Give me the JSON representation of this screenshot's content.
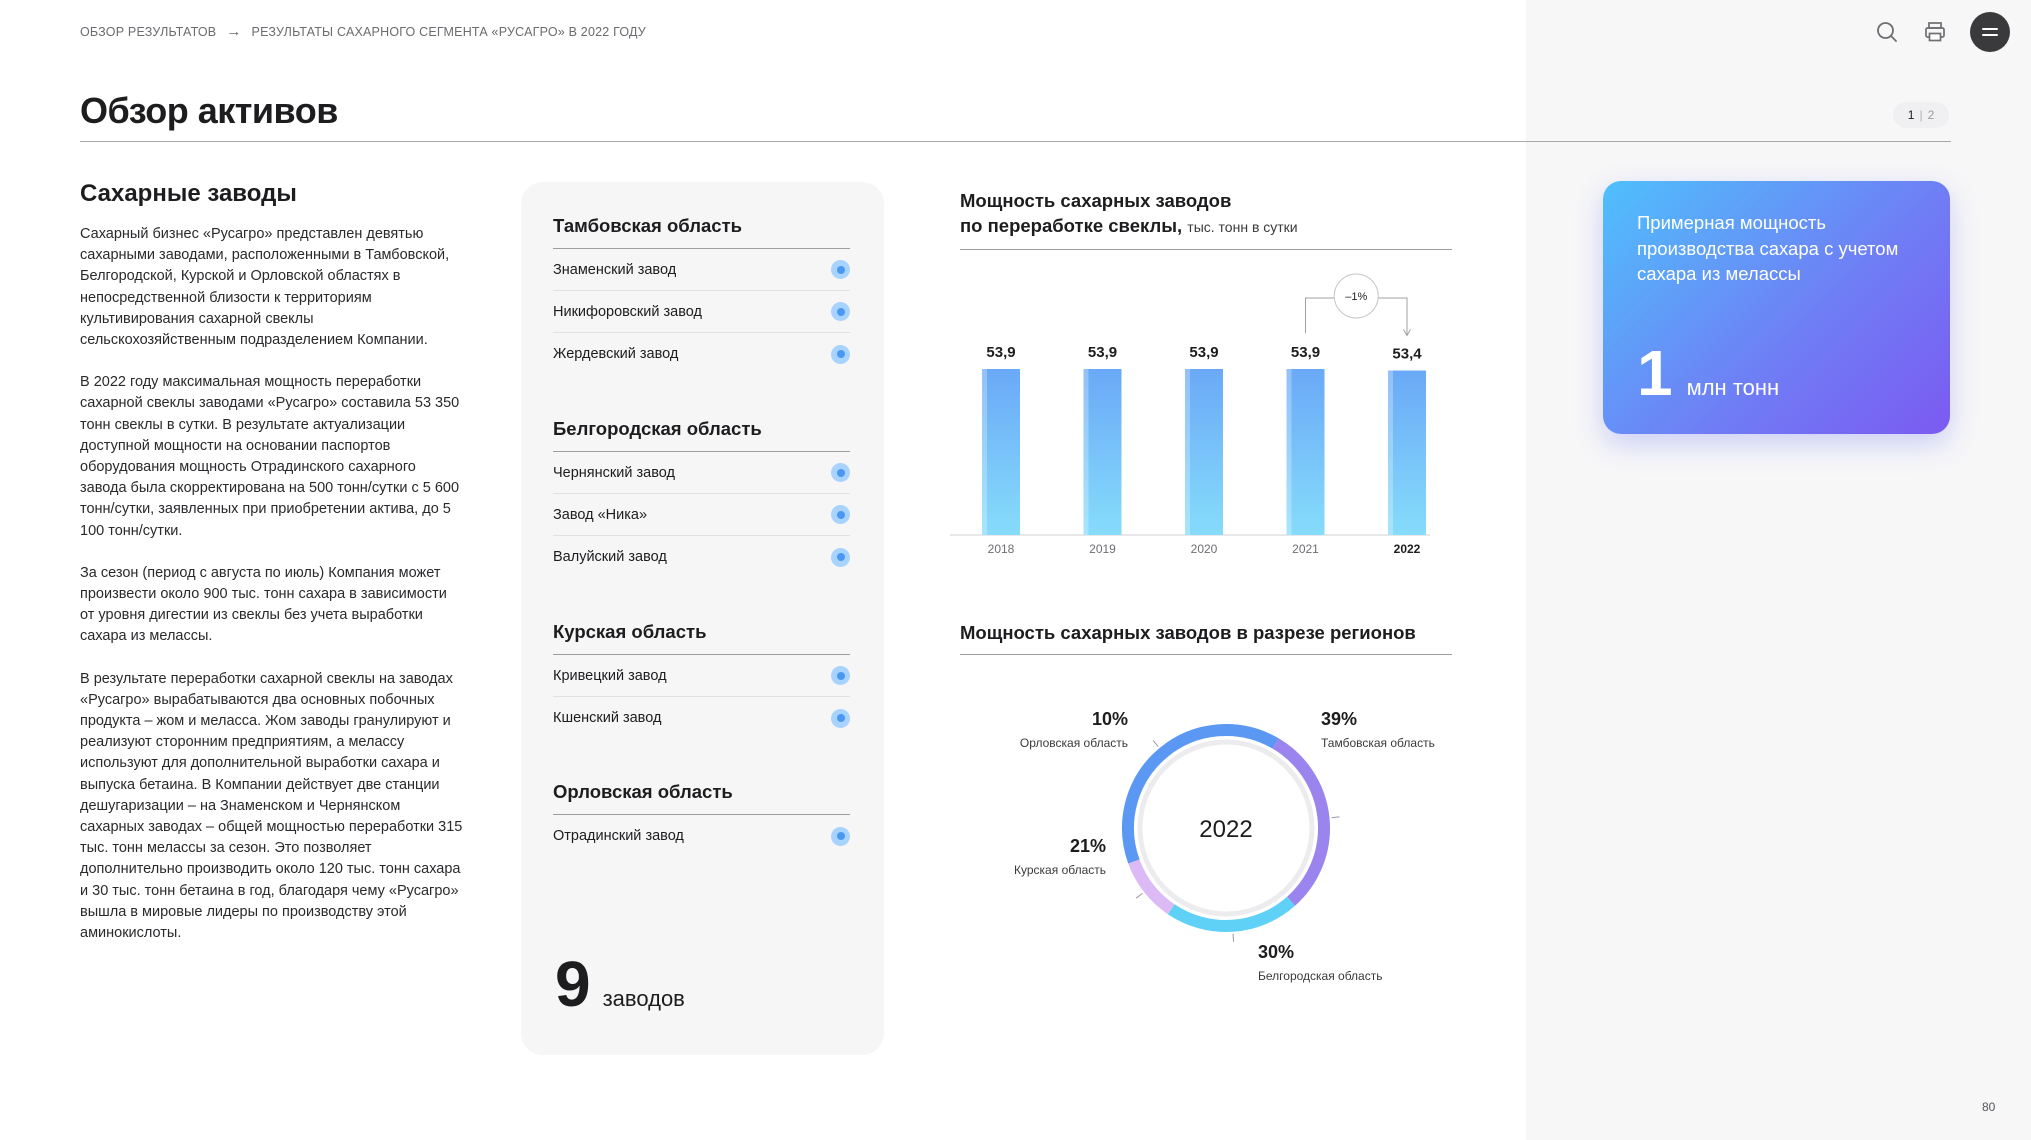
{
  "breadcrumb": {
    "parent": "ОБЗОР РЕЗУЛЬТАТОВ",
    "current": "РЕЗУЛЬТАТЫ САХАРНОГО СЕГМЕНТА «РУСАГРО» В 2022 ГОДУ"
  },
  "header": {
    "icons": [
      "search-icon",
      "print-icon",
      "menu-icon"
    ],
    "title": "Обзор активов",
    "pager": {
      "current": "1",
      "separator": "|",
      "next": "2"
    }
  },
  "left": {
    "title": "Сахарные заводы",
    "paragraphs": [
      "Сахарный бизнес «Русагро» представлен девятью сахарными заводами, расположенными в Тамбовской, Белгородской, Курской и Орловской областях в непосредственной близости к территориям культивирования сахарной свеклы сельскохозяйственным подразделением Компании.",
      "В 2022 году максимальная мощность переработки сахарной свеклы заводами «Русагро» составила 53 350 тонн свеклы в сутки. В результате актуализации доступной мощности на основании паспортов оборудования мощность Отрадинского сахарного завода была скорректирована на 500 тонн/сутки с 5 600 тонн/сутки, заявленных при приобретении актива, до 5 100 тонн/сутки.",
      "За сезон (период с августа по июль) Компания может произвести около 900 тыс. тонн сахара в зависимости от уровня дигестии из свеклы без учета выработки сахара из мелассы.",
      "В результате переработки сахарной свеклы на заводах «Русагро» вырабатываются два основных побочных продукта – жом и меласса. Жом заводы гранулируют и реализуют сторонним предприятиям, а мелассу используют для дополнительной выработки сахара и выпуска бетаина. В Компании действует две станции дешугаризации – на Знаменском и Чернянском сахарных заводах – общей мощностью переработки 315 тыс. тонн мелассы за сезон. Это позволяет дополнительно производить около 120 тыс. тонн сахара и 30 тыс. тонн бетаина в год, благодаря чему «Русагро» вышла в мировые лидеры по производству этой аминокислоты."
    ]
  },
  "plants": {
    "regions": [
      {
        "name": "Тамбовская область",
        "plants": [
          "Знаменский завод",
          "Никифоровский завод",
          "Жердевский завод"
        ]
      },
      {
        "name": "Белгородская область",
        "plants": [
          "Чернянский завод",
          "Завод «Ника»",
          "Валуйский завод"
        ]
      },
      {
        "name": "Курская область",
        "plants": [
          "Кривецкий завод",
          "Кшенский завод"
        ]
      },
      {
        "name": "Орловская область",
        "plants": [
          "Отрадинский завод"
        ]
      }
    ],
    "total_number": "9",
    "total_label": "заводов",
    "pin_icon": "map-pin-icon"
  },
  "chart_data": [
    {
      "type": "bar",
      "title": "Мощность сахарных заводов по переработке свеклы,",
      "unit": "тыс. тонн в сутки",
      "categories": [
        "2018",
        "2019",
        "2020",
        "2021",
        "2022"
      ],
      "values": [
        53.9,
        53.9,
        53.9,
        53.9,
        53.4
      ],
      "value_labels": [
        "53,9",
        "53,9",
        "53,9",
        "53,9",
        "53,4"
      ],
      "highlight_category": "2022",
      "change_label": "–1%",
      "ylim": [
        0,
        53.9
      ],
      "colors": {
        "bar_top": "#6aa9f7",
        "bar_bottom": "#86dcfb"
      }
    },
    {
      "type": "pie",
      "title": "Мощность сахарных заводов в разрезе регионов",
      "center_label": "2022",
      "slices": [
        {
          "label": "Тамбовская область",
          "value": 39,
          "display": "39%",
          "color": "#5b98f3"
        },
        {
          "label": "Белгородская область",
          "value": 30,
          "display": "30%",
          "color": "#9b84ee"
        },
        {
          "label": "Курская область",
          "value": 21,
          "display": "21%",
          "color": "#5fd0f6"
        },
        {
          "label": "Орловская область",
          "value": 10,
          "display": "10%",
          "color": "#dcbaf5"
        }
      ]
    }
  ],
  "callout": {
    "text": "Примерная мощность производства сахара с учетом сахара из мелассы",
    "number": "1",
    "unit": "млн тонн"
  },
  "page_number": "80"
}
